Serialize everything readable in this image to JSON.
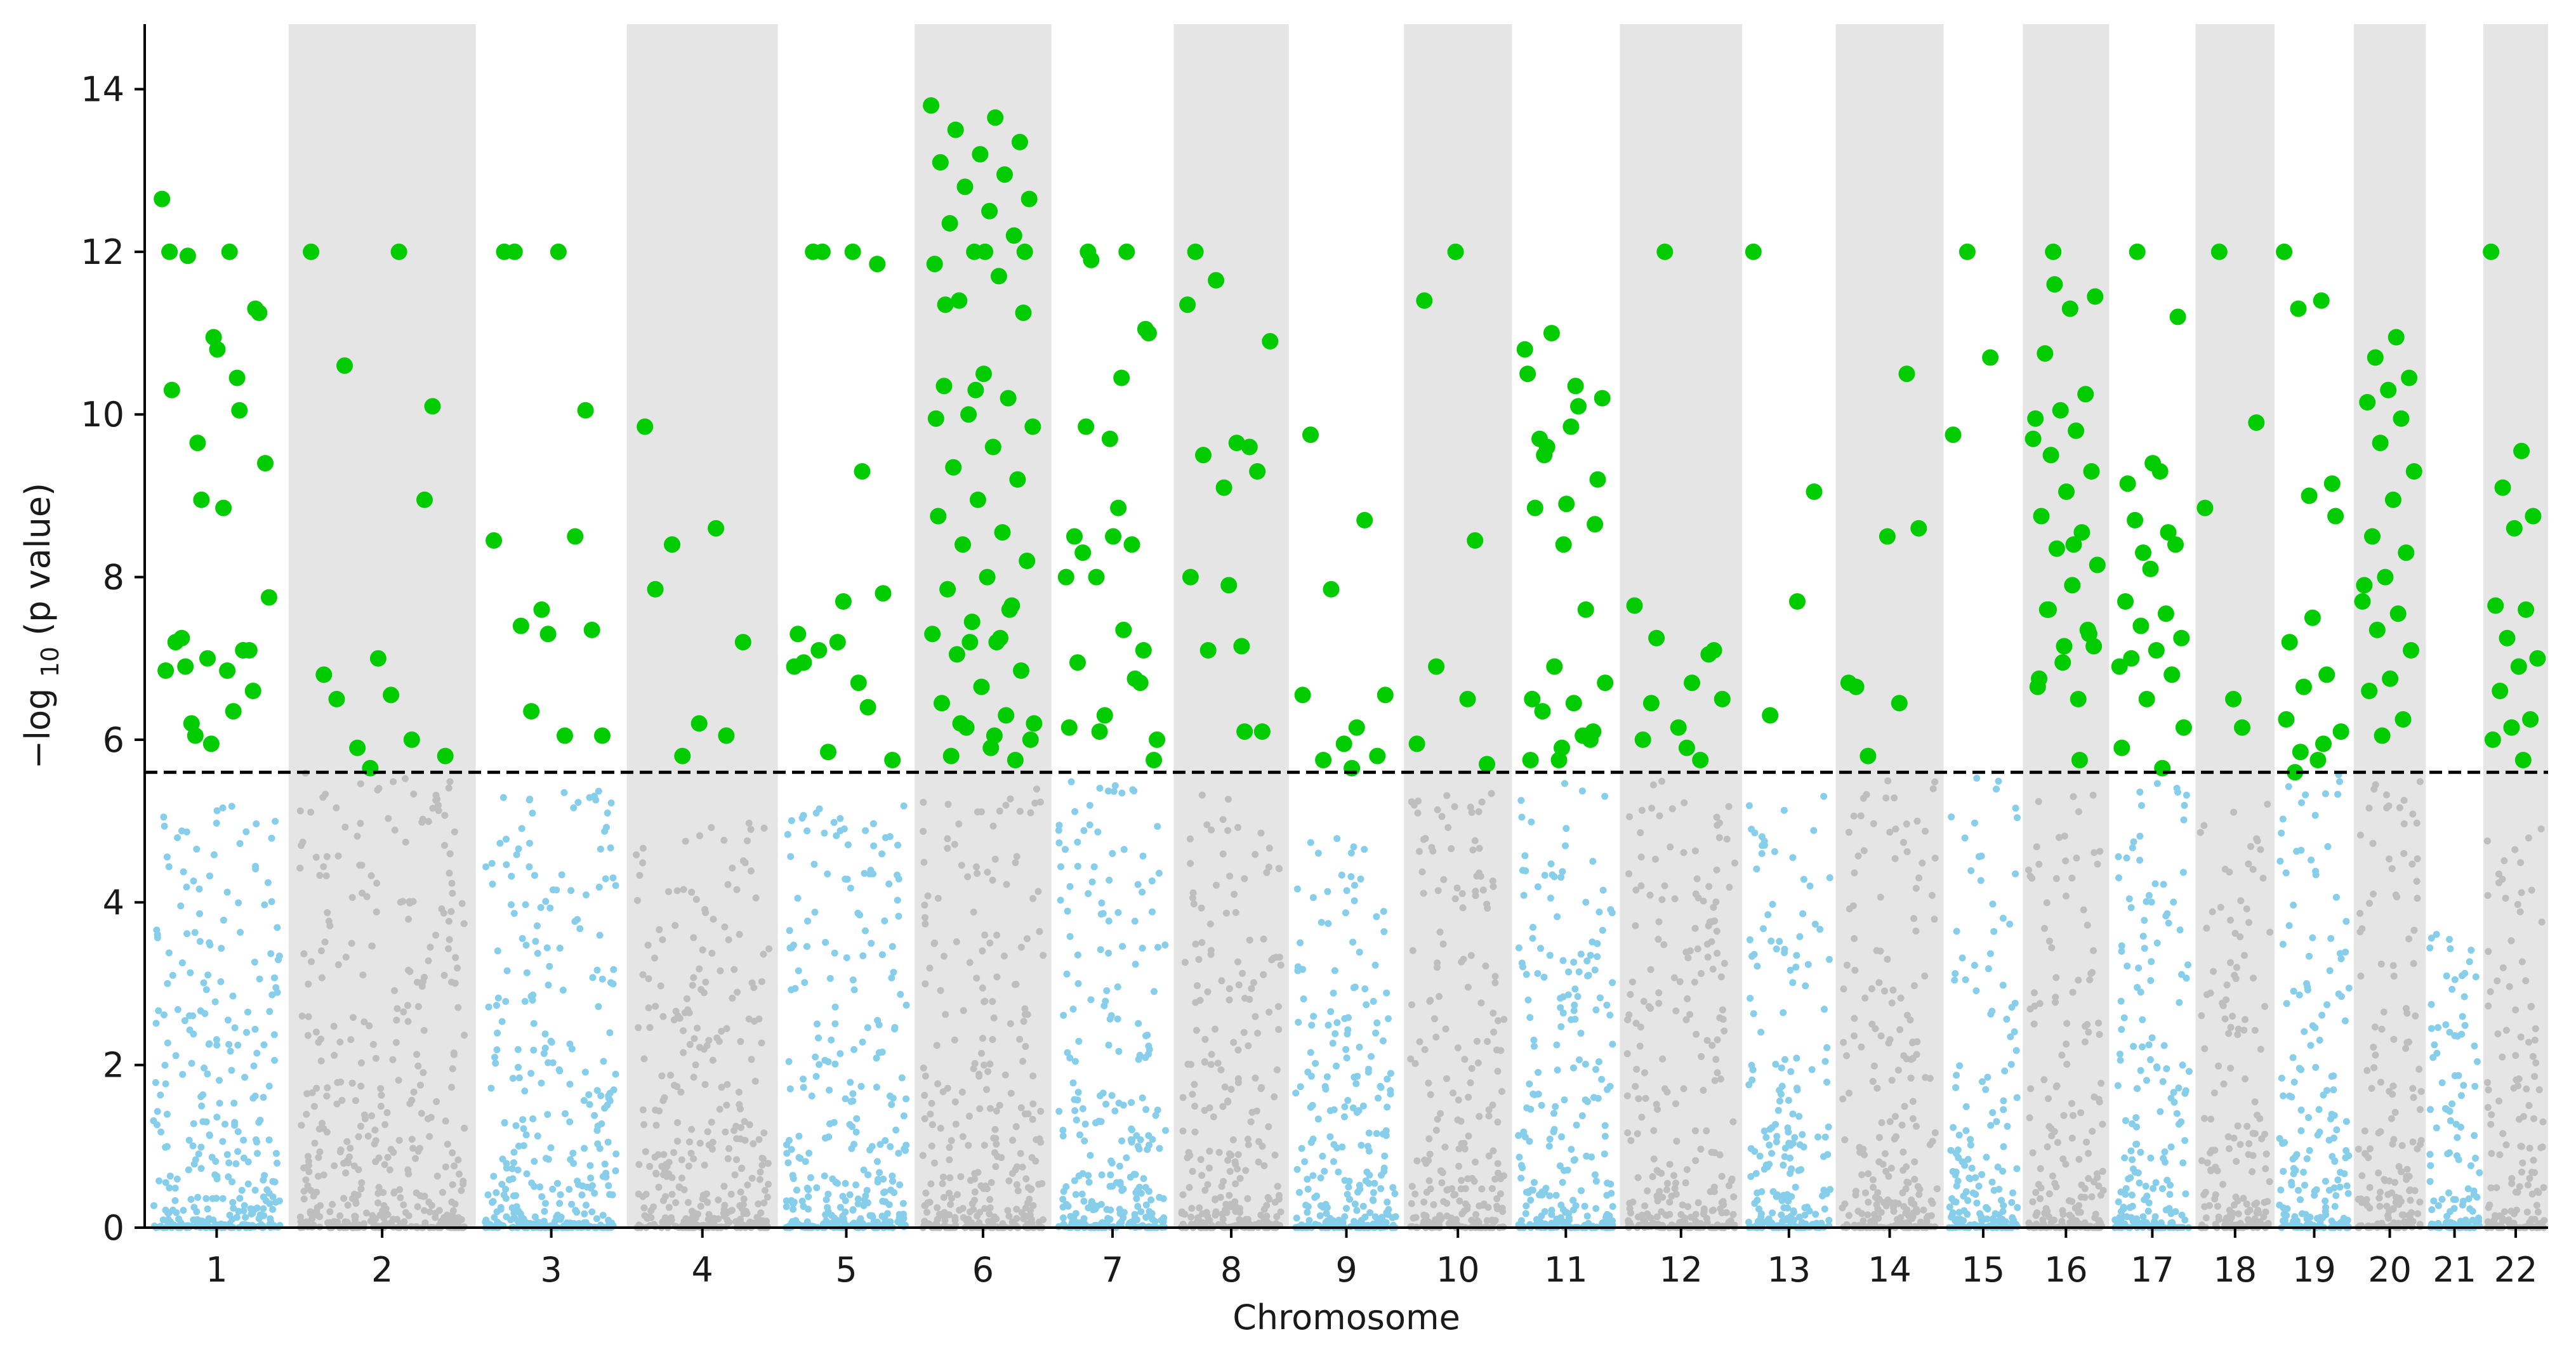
{
  "chart_data": {
    "type": "scatter",
    "subtype": "manhattan",
    "title": "",
    "xlabel": "Chromosome",
    "ylabel_parts": [
      "−log",
      "10",
      " (p value)"
    ],
    "ylim": [
      0,
      14.8
    ],
    "yticks": [
      0,
      2,
      4,
      6,
      8,
      10,
      12,
      14
    ],
    "threshold": 5.6,
    "threshold_style": "dashed",
    "grid": false,
    "legend": "none",
    "colors": {
      "significant": "#00CC00",
      "odd_chromosome": "#87CEEB",
      "even_chromosome": "#BEBEBE",
      "alt_band": "#E5E5E5",
      "threshold_line": "#000000"
    },
    "chromosomes": [
      {
        "label": "1",
        "x_range": [
          0.0,
          1.0
        ],
        "max_background": 5.2,
        "significant_y": [
          12.65,
          12.0,
          11.95,
          11.3,
          10.95,
          10.3,
          10.05,
          9.65,
          9.4,
          8.85,
          7.25,
          7.1,
          7.0,
          6.85,
          6.35,
          6.2,
          11.25,
          10.8,
          7.2,
          7.1,
          8.95,
          7.75,
          6.85,
          6.9,
          6.6,
          5.95,
          12.0,
          10.45,
          6.05
        ]
      },
      {
        "label": "2",
        "x_range": [
          1.0,
          2.3
        ],
        "max_background": 5.6,
        "significant_y": [
          12.0,
          12.0,
          10.6,
          10.1,
          7.0,
          6.8,
          6.0,
          5.9,
          5.8,
          6.55,
          6.5,
          8.95,
          5.65
        ]
      },
      {
        "label": "3",
        "x_range": [
          2.3,
          3.35
        ],
        "max_background": 5.45,
        "significant_y": [
          8.45,
          6.05,
          7.4,
          7.35,
          7.3,
          12.0,
          8.5,
          6.35,
          6.05,
          12.0,
          12.0,
          10.05,
          7.6
        ]
      },
      {
        "label": "4",
        "x_range": [
          3.35,
          4.4
        ],
        "max_background": 5.0,
        "significant_y": [
          9.85,
          8.6,
          8.4,
          7.2,
          6.2,
          7.85,
          6.05,
          5.8
        ]
      },
      {
        "label": "5",
        "x_range": [
          4.4,
          5.35
        ],
        "max_background": 5.2,
        "significant_y": [
          6.9,
          6.7,
          7.1,
          7.8,
          7.7,
          6.95,
          6.4,
          5.85,
          5.75,
          12.0,
          12.0,
          11.85,
          7.2,
          7.3,
          9.3,
          12.0
        ]
      },
      {
        "label": "6",
        "x_range": [
          5.35,
          6.3
        ],
        "max_background": 5.5,
        "significant_y": [
          13.8,
          13.65,
          13.5,
          13.35,
          13.2,
          13.1,
          12.95,
          12.8,
          12.65,
          12.5,
          12.35,
          12.2,
          12.0,
          11.85,
          11.7,
          11.4,
          11.25,
          10.5,
          10.35,
          10.2,
          10.0,
          9.85,
          9.6,
          9.35,
          9.2,
          8.95,
          8.75,
          8.55,
          8.4,
          8.2,
          8.0,
          7.85,
          7.65,
          7.45,
          7.3,
          7.2,
          7.05,
          6.85,
          6.65,
          6.45,
          6.3,
          6.15,
          6.0,
          5.9,
          5.8,
          5.75,
          10.3,
          9.95,
          7.25,
          6.2,
          12.0,
          12.0,
          11.35,
          7.6,
          7.2,
          6.2,
          6.05
        ]
      },
      {
        "label": "7",
        "x_range": [
          6.3,
          7.15
        ],
        "max_background": 5.5,
        "significant_y": [
          8.0,
          7.35,
          12.0,
          11.05,
          9.7,
          8.5,
          8.4,
          8.0,
          5.75,
          8.85,
          8.3,
          6.7,
          6.3,
          6.15,
          12.0,
          11.9,
          11.0,
          8.5,
          6.95,
          6.75,
          6.1,
          6.0,
          10.45,
          9.85,
          7.1
        ]
      },
      {
        "label": "8",
        "x_range": [
          7.15,
          7.95
        ],
        "max_background": 5.5,
        "significant_y": [
          11.35,
          7.15,
          7.1,
          6.1,
          7.9,
          12.0,
          9.6,
          11.65,
          10.9,
          9.65,
          9.5,
          9.3,
          9.1,
          8.0,
          6.1
        ]
      },
      {
        "label": "9",
        "x_range": [
          7.95,
          8.75
        ],
        "max_background": 5.0,
        "significant_y": [
          6.55,
          6.15,
          5.75,
          5.8,
          5.95,
          9.75,
          8.7,
          7.85,
          6.55,
          5.65
        ]
      },
      {
        "label": "10",
        "x_range": [
          8.75,
          9.5
        ],
        "max_background": 5.4,
        "significant_y": [
          5.95,
          6.5,
          6.9,
          5.7,
          12.0,
          11.4,
          8.45
        ]
      },
      {
        "label": "11",
        "x_range": [
          9.5,
          10.25
        ],
        "max_background": 5.6,
        "significant_y": [
          10.8,
          10.35,
          9.5,
          8.65,
          8.4,
          6.5,
          6.05,
          11.0,
          10.2,
          9.85,
          9.7,
          6.0,
          5.75,
          10.5,
          10.1,
          9.6,
          9.2,
          8.9,
          8.85,
          7.6,
          6.9,
          6.7,
          6.45,
          6.35,
          6.1,
          5.9,
          5.75
        ]
      },
      {
        "label": "12",
        "x_range": [
          10.25,
          11.1
        ],
        "max_background": 5.5,
        "significant_y": [
          7.65,
          6.7,
          7.25,
          7.1,
          6.15,
          6.0,
          5.75,
          12.0,
          6.5,
          5.9,
          6.45,
          7.05
        ]
      },
      {
        "label": "13",
        "x_range": [
          11.1,
          11.75
        ],
        "max_background": 5.4,
        "significant_y": [
          12.0,
          7.7,
          6.3,
          9.05
        ]
      },
      {
        "label": "14",
        "x_range": [
          11.75,
          12.5
        ],
        "max_background": 5.5,
        "significant_y": [
          6.7,
          6.45,
          5.8,
          8.6,
          8.5,
          6.65,
          10.5
        ]
      },
      {
        "label": "15",
        "x_range": [
          12.5,
          13.05
        ],
        "max_background": 5.6,
        "significant_y": [
          9.75,
          10.7,
          12.0
        ]
      },
      {
        "label": "16",
        "x_range": [
          13.05,
          13.65
        ],
        "max_background": 5.4,
        "significant_y": [
          9.7,
          8.4,
          7.6,
          7.3,
          7.15,
          6.75,
          5.75,
          11.6,
          11.45,
          11.3,
          10.75,
          10.25,
          10.05,
          9.95,
          9.8,
          9.5,
          9.3,
          9.05,
          8.75,
          8.55,
          8.35,
          8.15,
          7.9,
          7.6,
          7.35,
          6.95,
          6.65,
          6.5,
          12.0,
          7.15
        ]
      },
      {
        "label": "17",
        "x_range": [
          13.65,
          14.25
        ],
        "max_background": 5.55,
        "significant_y": [
          6.9,
          9.3,
          8.7,
          8.4,
          8.1,
          7.7,
          7.55,
          7.4,
          7.25,
          7.1,
          7.0,
          6.8,
          6.5,
          5.9,
          5.65,
          12.0,
          11.2,
          9.4,
          9.15,
          8.55,
          8.3,
          6.15
        ]
      },
      {
        "label": "18",
        "x_range": [
          14.25,
          14.8
        ],
        "max_background": 5.3,
        "significant_y": [
          8.85,
          6.15,
          12.0,
          9.9,
          6.5
        ]
      },
      {
        "label": "19",
        "x_range": [
          14.8,
          15.35
        ],
        "max_background": 5.6,
        "significant_y": [
          12.0,
          11.4,
          11.3,
          8.75,
          7.5,
          7.2,
          6.8,
          6.65,
          6.1,
          5.75,
          5.6,
          9.15,
          9.0,
          6.25,
          5.95,
          5.85
        ]
      },
      {
        "label": "20",
        "x_range": [
          15.35,
          15.85
        ],
        "max_background": 5.5,
        "significant_y": [
          7.7,
          10.95,
          10.7,
          10.45,
          10.3,
          10.15,
          9.95,
          9.65,
          9.3,
          8.95,
          8.5,
          8.3,
          8.0,
          7.9,
          7.55,
          7.35,
          7.1,
          6.75,
          6.6,
          6.25,
          6.05
        ]
      },
      {
        "label": "21",
        "x_range": [
          15.85,
          16.25
        ],
        "max_background": 3.7,
        "significant_y": []
      },
      {
        "label": "22",
        "x_range": [
          16.25,
          16.7
        ],
        "max_background": 5.0,
        "significant_y": [
          12.0,
          9.55,
          9.1,
          8.75,
          8.6,
          7.65,
          7.6,
          7.25,
          7.0,
          6.9,
          6.6,
          6.25,
          6.15,
          6.0,
          5.75
        ]
      }
    ]
  }
}
